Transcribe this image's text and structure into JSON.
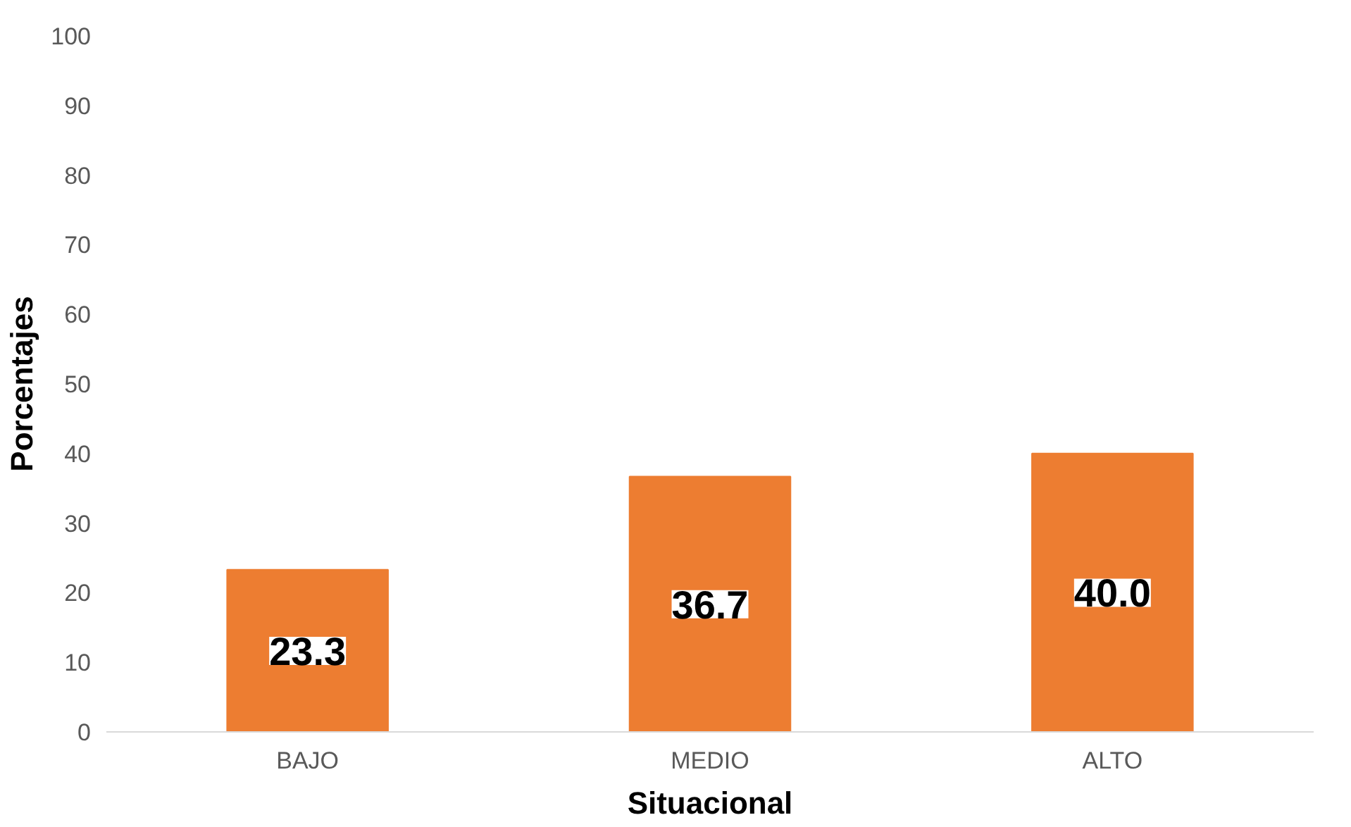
{
  "chart_data": {
    "type": "bar",
    "xlabel": "Situacional",
    "ylabel": "Porcentajes",
    "categories": [
      "BAJO",
      "MEDIO",
      "ALTO"
    ],
    "values": [
      23.3,
      36.7,
      40.0
    ],
    "value_labels": [
      "23.3",
      "36.7",
      "40.0"
    ],
    "color": "#ed7d31",
    "ylim": [
      0,
      100
    ],
    "yticks": [
      0,
      10,
      20,
      30,
      40,
      50,
      60,
      70,
      80,
      90,
      100
    ],
    "grid": false
  }
}
